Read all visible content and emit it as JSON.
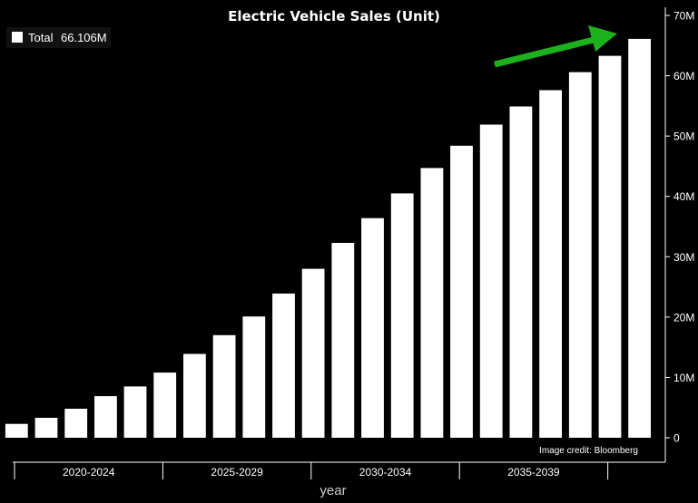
{
  "chart_data": {
    "type": "bar",
    "title": "Electric Vehicle Sales (Unit)",
    "xlabel": "year",
    "ylabel": "",
    "ylim": [
      0,
      70000000
    ],
    "y_ticks": [
      "0",
      "10M",
      "20M",
      "30M",
      "40M",
      "50M",
      "60M",
      "70M"
    ],
    "y_tick_values": [
      0,
      10000000,
      20000000,
      30000000,
      40000000,
      50000000,
      60000000,
      70000000
    ],
    "x_tick_labels": [
      "2020-2024",
      "2025-2029",
      "2030-2034",
      "2035-2039"
    ],
    "series": [
      {
        "name": "Total",
        "values": [
          2300000,
          3300000,
          4800000,
          6900000,
          8500000,
          10800000,
          13900000,
          17000000,
          20100000,
          23900000,
          28000000,
          32300000,
          36400000,
          40500000,
          44700000,
          48400000,
          51900000,
          54900000,
          57600000,
          60600000,
          63300000,
          66106000
        ]
      }
    ],
    "legend": {
      "label": "Total",
      "value": "66.106M",
      "position": "top-left"
    },
    "annotation": "Image credit: Bloomberg",
    "grid": false,
    "axis_side": "right"
  },
  "colors": {
    "background": "#000000",
    "bars": "#ffffff",
    "text": "#ffffff",
    "arrow": "#1db11d"
  },
  "icons": {
    "legend_marker": "white-square-icon",
    "trend_arrow": "green-arrow-icon"
  }
}
